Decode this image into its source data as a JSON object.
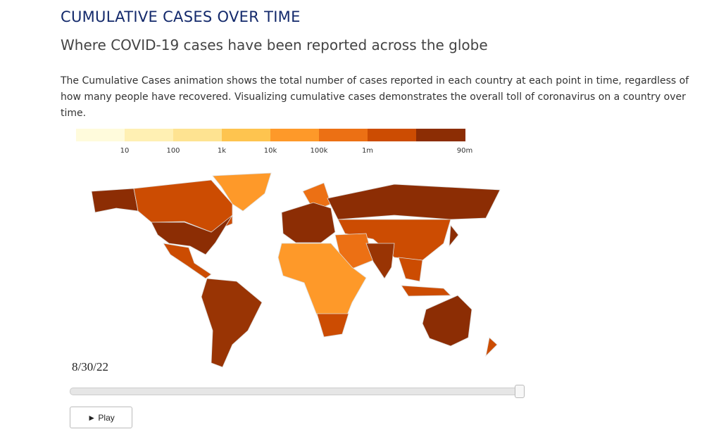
{
  "header": {
    "title": "CUMULATIVE CASES OVER TIME",
    "subtitle": "Where COVID-19 cases have been reported across the globe",
    "description": "The Cumulative Cases animation shows the total number of cases reported in each country at each point in time, regardless of how many people have recovered. Visualizing cumulative cases demonstrates the overall toll of coronavirus on a country over time."
  },
  "legend": {
    "colors": [
      "#fffbdc",
      "#fff0b3",
      "#fee391",
      "#fec44f",
      "#fe9929",
      "#ec7014",
      "#cc4c02",
      "#8c2d04"
    ],
    "labels": [
      "10",
      "100",
      "1k",
      "10k",
      "100k",
      "1m",
      "90m"
    ]
  },
  "player": {
    "date": "8/30/22",
    "button": "► Play"
  }
}
